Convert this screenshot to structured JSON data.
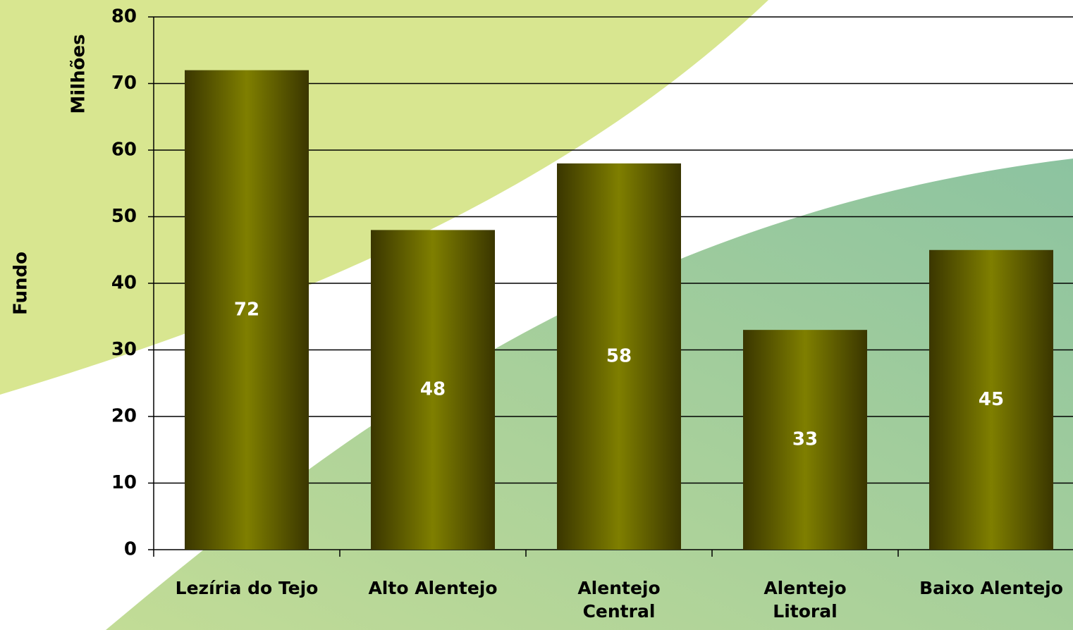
{
  "chart_data": {
    "type": "bar",
    "y_label": "Milhões",
    "side_label": "Fundo",
    "categories": [
      "Lezíria do Tejo",
      "Alto Alentejo",
      "Alentejo\nCentral",
      "Alentejo\nLitoral",
      "Baixo Alentejo"
    ],
    "values": [
      72,
      48,
      58,
      33,
      45
    ],
    "color": "#7f7f00",
    "edge_color": "#3a3600",
    "ylim": [
      0,
      80
    ],
    "yticks": [
      0,
      10,
      20,
      30,
      40,
      50,
      60,
      70,
      80
    ],
    "grid": true
  }
}
